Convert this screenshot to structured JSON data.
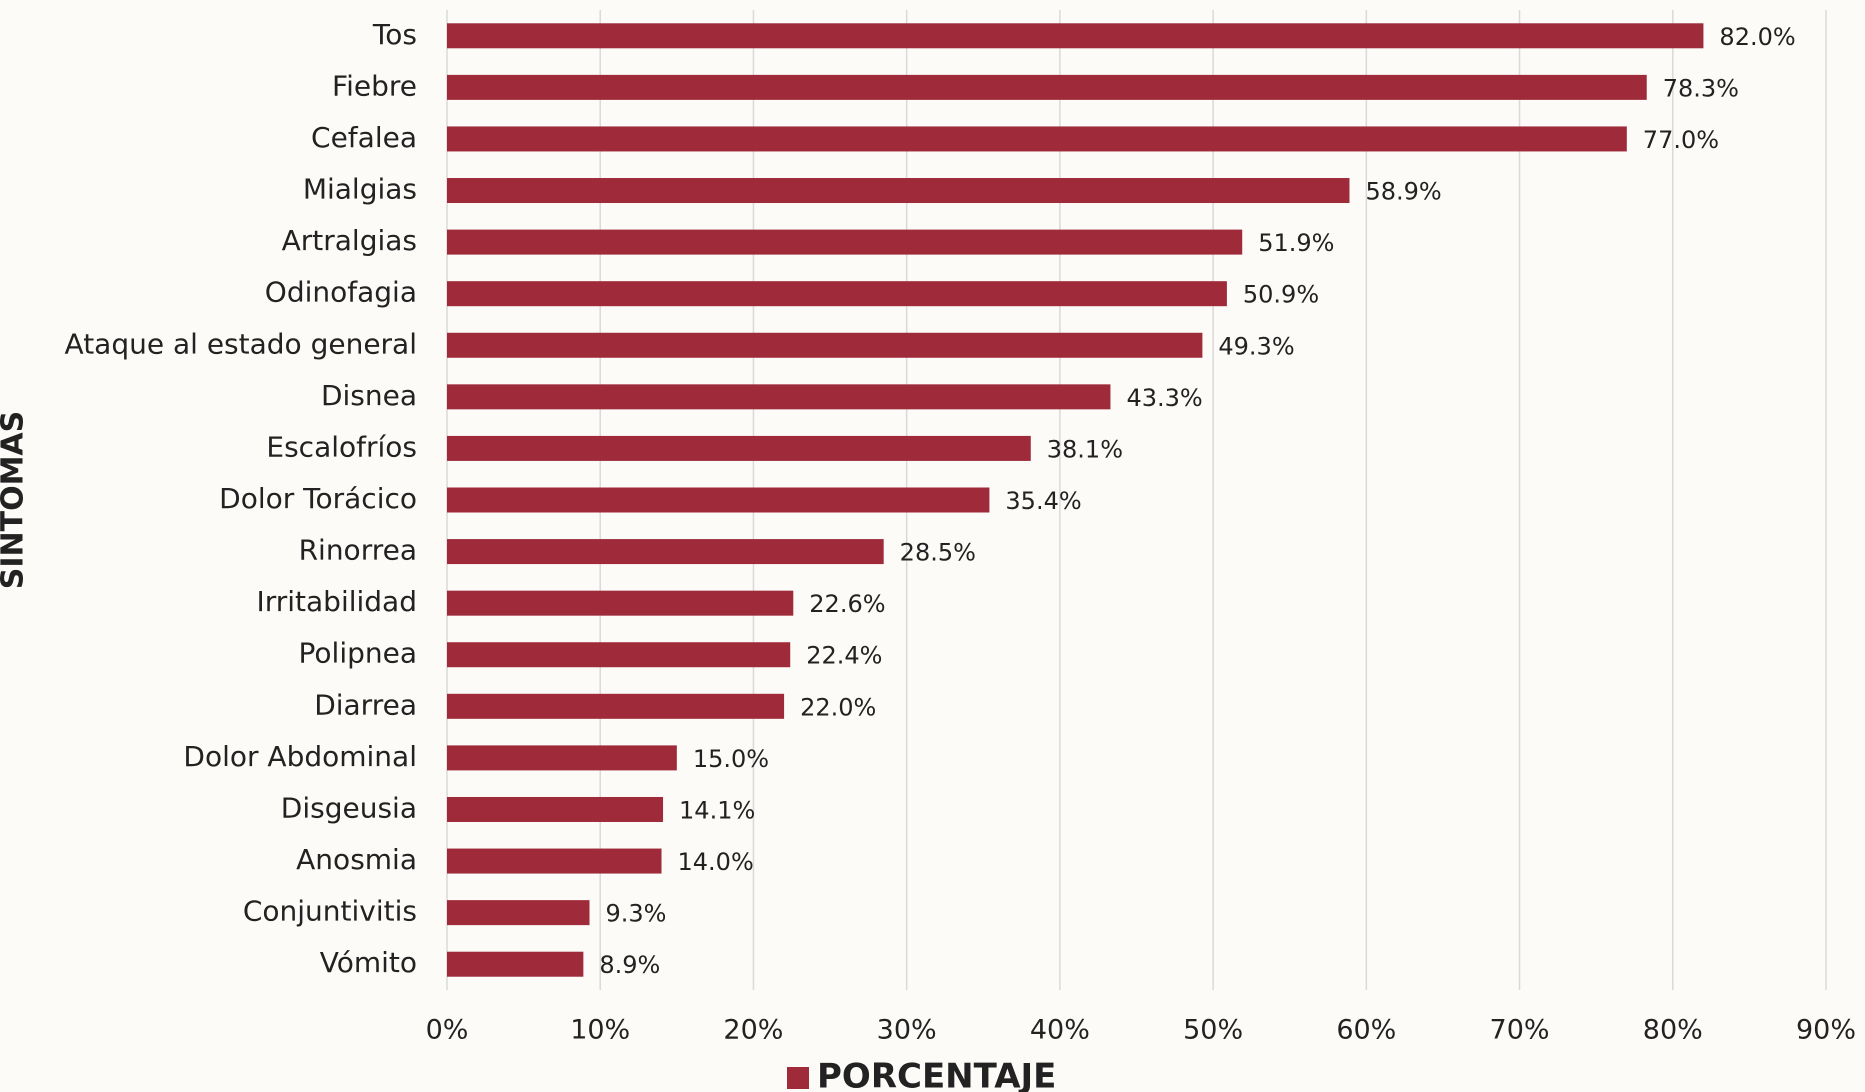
{
  "chart_data": {
    "type": "bar",
    "orientation": "horizontal",
    "y_axis_title": "SINTOMAS",
    "categories": [
      "Tos",
      "Fiebre",
      "Cefalea",
      "Mialgias",
      "Artralgias",
      "Odinofagia",
      "Ataque al estado general",
      "Disnea",
      "Escalofríos",
      "Dolor Torácico",
      "Rinorrea",
      "Irritabilidad",
      "Polipnea",
      "Diarrea",
      "Dolor Abdominal",
      "Disgeusia",
      "Anosmia",
      "Conjuntivitis",
      "Vómito"
    ],
    "series": [
      {
        "name": "PORCENTAJE",
        "color": "#9e2a3a",
        "values": [
          82.0,
          78.3,
          77.0,
          58.9,
          51.9,
          50.9,
          49.3,
          43.3,
          38.1,
          35.4,
          28.5,
          22.6,
          22.4,
          22.0,
          15.0,
          14.1,
          14.0,
          9.3,
          8.9
        ],
        "value_labels": [
          "82.0%",
          "78.3%",
          "77.0%",
          "58.9%",
          "51.9%",
          "50.9%",
          "49.3%",
          "43.3%",
          "38.1%",
          "35.4%",
          "28.5%",
          "22.6%",
          "22.4%",
          "22.0%",
          "15.0%",
          "14.1%",
          "14.0%",
          "9.3%",
          "8.9%"
        ]
      }
    ],
    "xlim": [
      0,
      90
    ],
    "xticks": [
      {
        "value": 0,
        "label": "0%"
      },
      {
        "value": 10,
        "label": "10%"
      },
      {
        "value": 20,
        "label": "20%"
      },
      {
        "value": 30,
        "label": "30%"
      },
      {
        "value": 40,
        "label": "40%"
      },
      {
        "value": 50,
        "label": "50%"
      },
      {
        "value": 60,
        "label": "60%"
      },
      {
        "value": 70,
        "label": "70%"
      },
      {
        "value": 80,
        "label": "80%"
      },
      {
        "value": 90,
        "label": "90%"
      }
    ],
    "grid": true
  }
}
